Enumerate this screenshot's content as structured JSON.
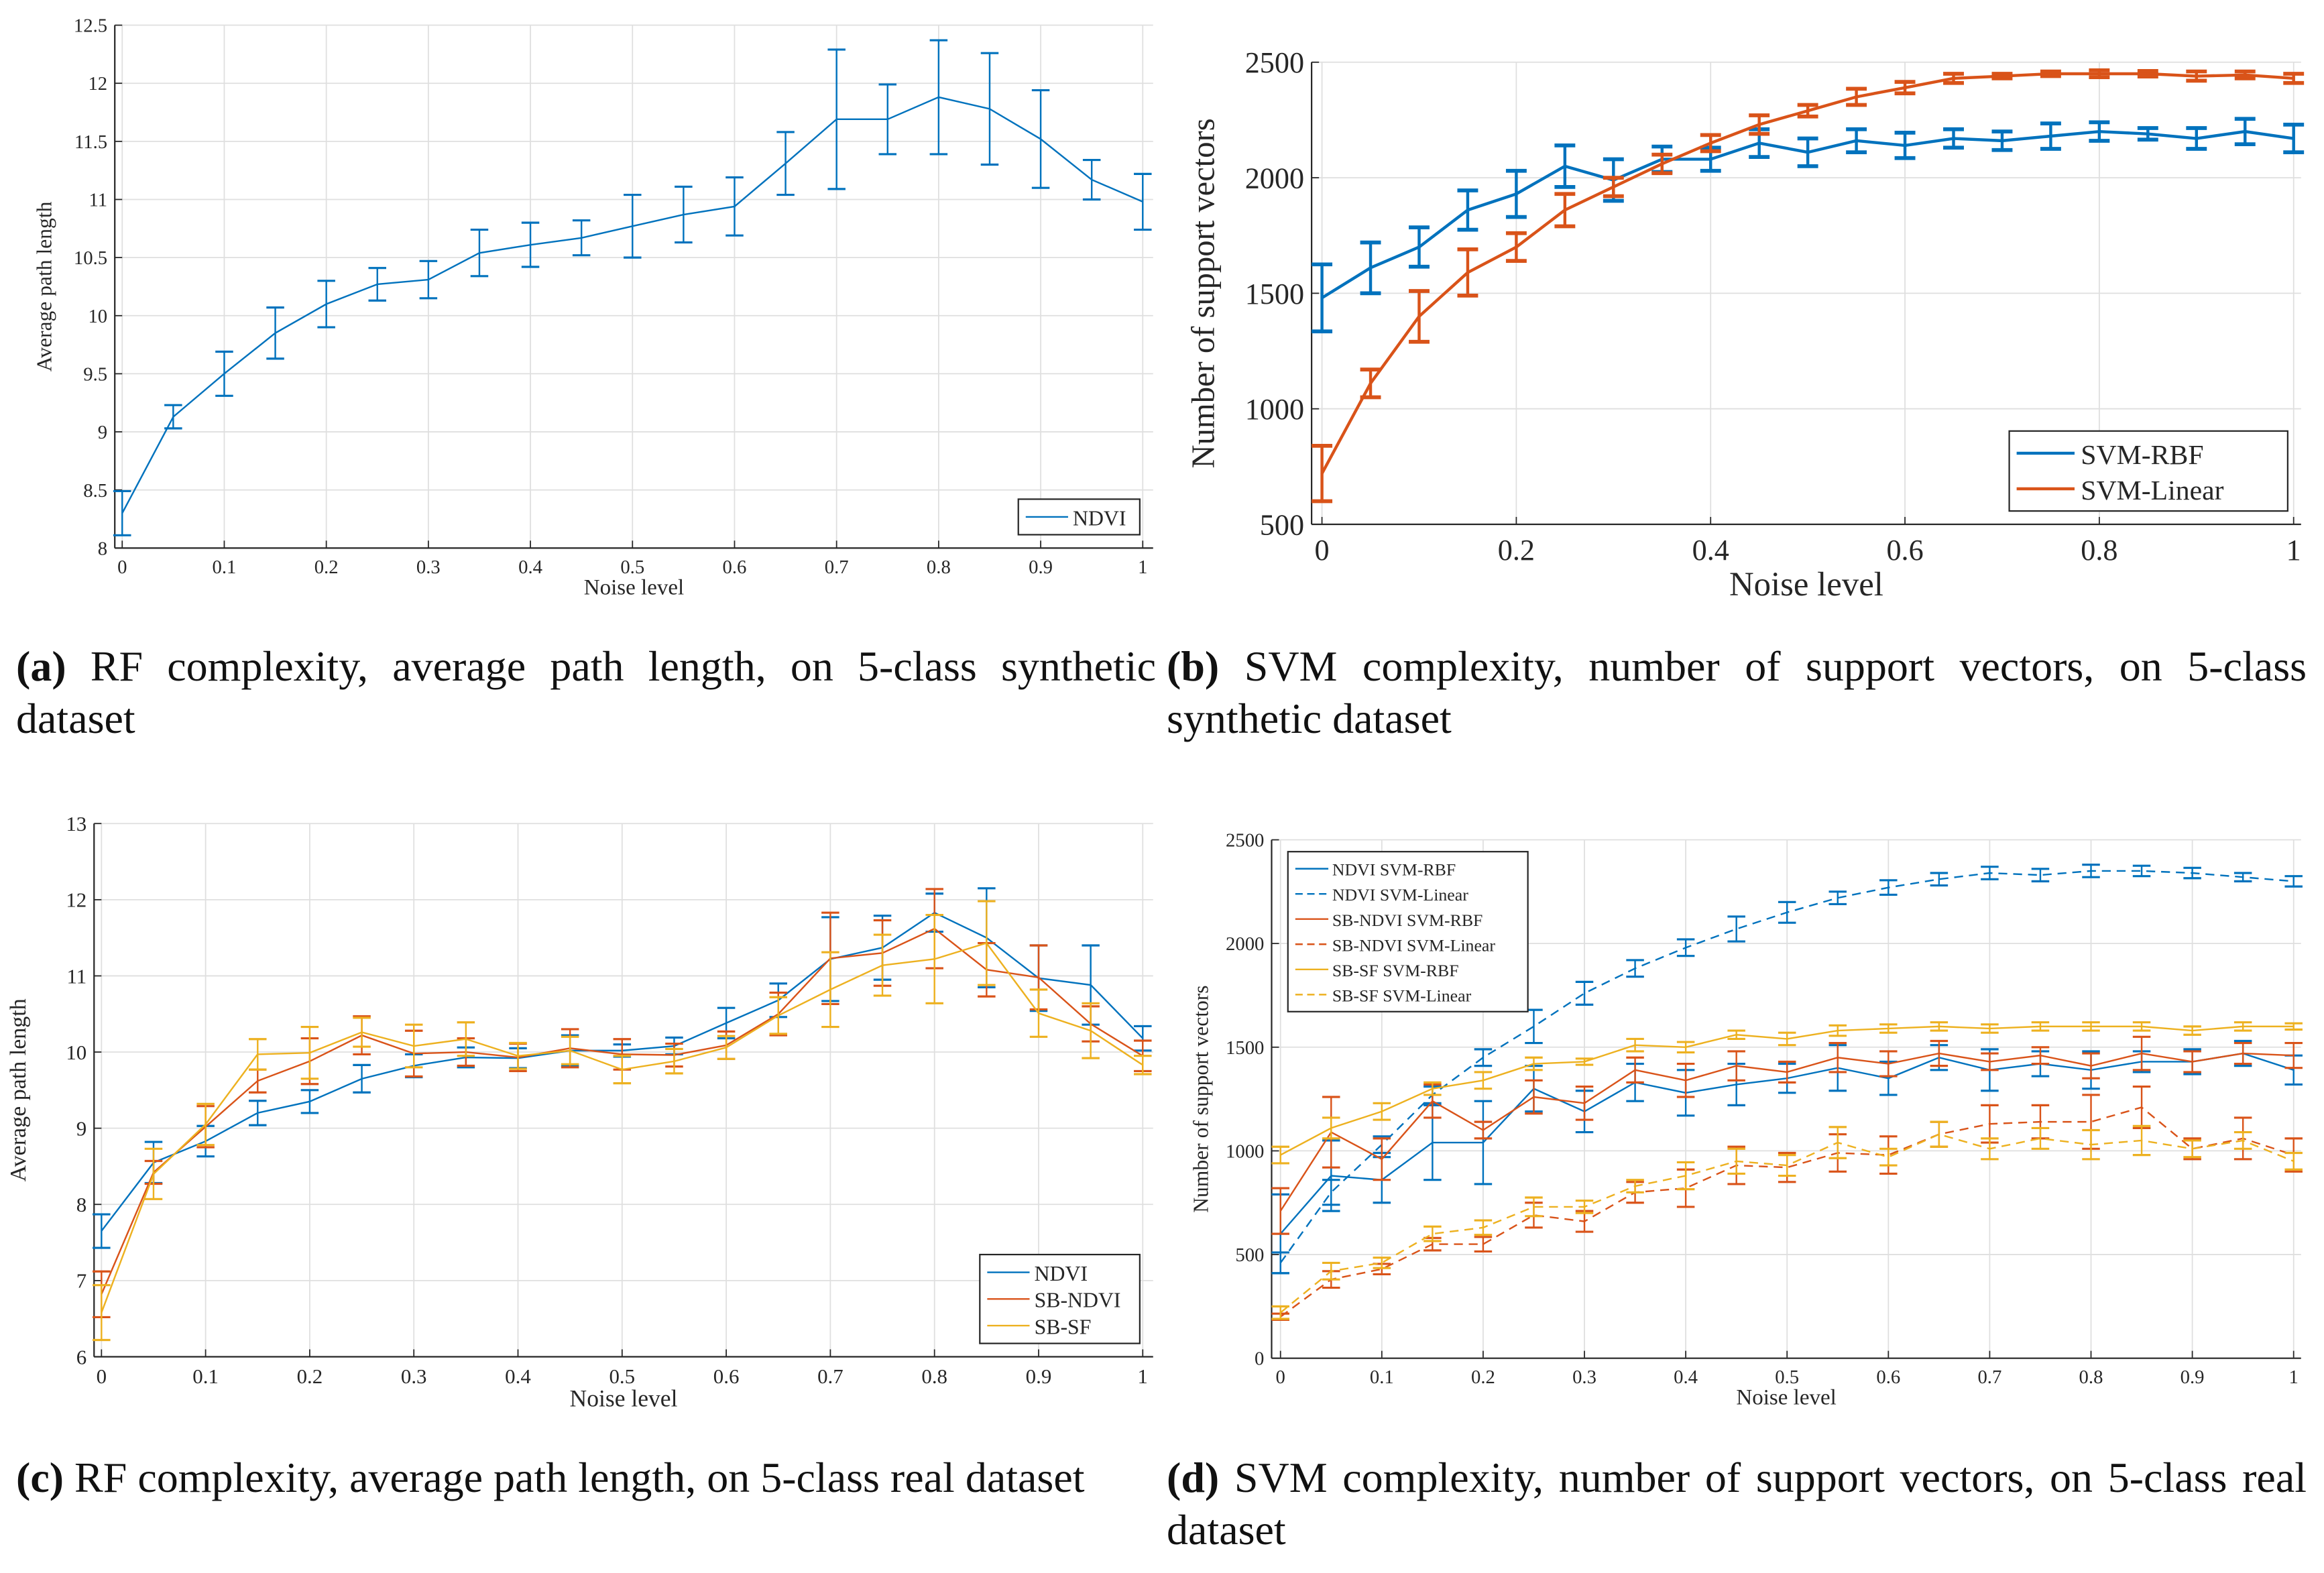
{
  "colors": {
    "blue": "#0072BD",
    "orange": "#D95319",
    "yellow": "#EDB120",
    "grid": "#dfdfdf",
    "axis": "#262626"
  },
  "captions": [
    {
      "label": "(a)",
      "text": "RF complexity, average path length, on 5-class synthetic dataset"
    },
    {
      "label": "(b)",
      "text": "SVM complexity, number of support vectors, on 5-class synthetic dataset"
    },
    {
      "label": "(c)",
      "text": "RF complexity, average path length, on 5-class real dataset"
    },
    {
      "label": "(d)",
      "text": "SVM complexity, number of support vectors, on 5-class real dataset"
    }
  ],
  "chart_data": [
    {
      "id": "a",
      "type": "line",
      "title": "",
      "xlabel": "Noise level",
      "ylabel": "Average path length",
      "xlim": [
        0,
        1
      ],
      "ylim": [
        8,
        12.5
      ],
      "grid": true,
      "legend_position": "bottom-right",
      "xticks": [
        "0",
        "0.1",
        "0.2",
        "0.3",
        "0.4",
        "0.5",
        "0.6",
        "0.7",
        "0.8",
        "0.9",
        "1"
      ],
      "yticks": [
        "8",
        "8.5",
        "9",
        "9.5",
        "10",
        "10.5",
        "11",
        "11.5",
        "12",
        "12.5"
      ],
      "x": [
        0,
        0.05,
        0.1,
        0.15,
        0.2,
        0.25,
        0.3,
        0.35,
        0.4,
        0.45,
        0.5,
        0.55,
        0.6,
        0.65,
        0.7,
        0.75,
        0.8,
        0.85,
        0.9,
        0.95,
        1
      ],
      "series": [
        {
          "name": "NDVI",
          "color": "#0072BD",
          "dashed": false,
          "values": [
            8.3,
            9.13,
            9.5,
            9.85,
            10.1,
            10.27,
            10.31,
            10.54,
            10.61,
            10.67,
            10.77,
            10.87,
            10.94,
            11.31,
            11.69,
            11.69,
            11.88,
            11.78,
            11.52,
            11.17,
            10.98
          ],
          "errors": [
            0.19,
            0.1,
            0.19,
            0.22,
            0.2,
            0.14,
            0.16,
            0.2,
            0.19,
            0.15,
            0.27,
            0.24,
            0.25,
            0.27,
            0.6,
            0.3,
            0.49,
            0.48,
            0.42,
            0.17,
            0.24
          ]
        }
      ]
    },
    {
      "id": "b",
      "type": "line",
      "title": "",
      "xlabel": "Noise level",
      "ylabel": "Number of support vectors",
      "xlim": [
        0,
        1
      ],
      "ylim": [
        500,
        2500
      ],
      "grid": true,
      "legend_position": "bottom-right",
      "xticks": [
        "0",
        "0.2",
        "0.4",
        "0.6",
        "0.8",
        "1"
      ],
      "yticks": [
        "500",
        "1000",
        "1500",
        "2000",
        "2500"
      ],
      "x": [
        0,
        0.05,
        0.1,
        0.15,
        0.2,
        0.25,
        0.3,
        0.35,
        0.4,
        0.45,
        0.5,
        0.55,
        0.6,
        0.65,
        0.7,
        0.75,
        0.8,
        0.85,
        0.9,
        0.95,
        1
      ],
      "series": [
        {
          "name": "SVM-RBF",
          "color": "#0072BD",
          "dashed": false,
          "values": [
            1480,
            1610,
            1700,
            1860,
            1930,
            2050,
            1990,
            2080,
            2080,
            2150,
            2110,
            2160,
            2140,
            2170,
            2160,
            2180,
            2200,
            2190,
            2170,
            2200,
            2170
          ],
          "errors": [
            145,
            110,
            85,
            85,
            100,
            90,
            90,
            55,
            50,
            60,
            60,
            50,
            55,
            40,
            40,
            55,
            40,
            25,
            45,
            55,
            60
          ]
        },
        {
          "name": "SVM-Linear",
          "color": "#D95319",
          "dashed": false,
          "values": [
            720,
            1110,
            1400,
            1590,
            1700,
            1860,
            1960,
            2060,
            2150,
            2230,
            2290,
            2350,
            2390,
            2430,
            2440,
            2450,
            2450,
            2450,
            2440,
            2445,
            2430
          ],
          "errors": [
            120,
            60,
            110,
            100,
            60,
            70,
            40,
            40,
            35,
            40,
            25,
            35,
            25,
            20,
            10,
            10,
            15,
            12,
            20,
            15,
            20
          ]
        }
      ]
    },
    {
      "id": "c",
      "type": "line",
      "title": "",
      "xlabel": "Noise level",
      "ylabel": "Average path length",
      "xlim": [
        0,
        1
      ],
      "ylim": [
        6,
        13
      ],
      "grid": true,
      "legend_position": "bottom-right",
      "xticks": [
        "0",
        "0.1",
        "0.2",
        "0.3",
        "0.4",
        "0.5",
        "0.6",
        "0.7",
        "0.8",
        "0.9",
        "1"
      ],
      "yticks": [
        "6",
        "7",
        "8",
        "9",
        "10",
        "11",
        "12",
        "13"
      ],
      "x": [
        0,
        0.05,
        0.1,
        0.15,
        0.2,
        0.25,
        0.3,
        0.35,
        0.4,
        0.45,
        0.5,
        0.55,
        0.6,
        0.65,
        0.7,
        0.75,
        0.8,
        0.85,
        0.9,
        0.95,
        1
      ],
      "series": [
        {
          "name": "NDVI",
          "color": "#0072BD",
          "dashed": false,
          "values": [
            7.65,
            8.55,
            8.83,
            9.2,
            9.35,
            9.65,
            9.82,
            9.93,
            9.92,
            10.02,
            10.02,
            10.08,
            10.38,
            10.68,
            11.22,
            11.37,
            11.83,
            11.5,
            10.97,
            10.88,
            10.18
          ],
          "errors": [
            0.22,
            0.27,
            0.2,
            0.16,
            0.15,
            0.18,
            0.15,
            0.13,
            0.13,
            0.2,
            0.08,
            0.11,
            0.2,
            0.22,
            0.55,
            0.42,
            0.25,
            0.65,
            0.43,
            0.52,
            0.16
          ]
        },
        {
          "name": "SB-NDVI",
          "color": "#D95319",
          "dashed": false,
          "values": [
            6.82,
            8.42,
            9.02,
            9.62,
            9.88,
            10.22,
            9.98,
            10.0,
            9.93,
            10.05,
            9.97,
            9.96,
            10.09,
            10.5,
            11.23,
            11.3,
            11.62,
            11.08,
            10.98,
            10.37,
            9.95
          ],
          "errors": [
            0.3,
            0.15,
            0.27,
            0.15,
            0.3,
            0.25,
            0.3,
            0.18,
            0.18,
            0.25,
            0.2,
            0.15,
            0.18,
            0.28,
            0.6,
            0.43,
            0.52,
            0.35,
            0.42,
            0.23,
            0.2
          ]
        },
        {
          "name": "SB-SF",
          "color": "#EDB120",
          "dashed": false,
          "values": [
            6.58,
            8.4,
            9.05,
            9.97,
            9.99,
            10.26,
            10.08,
            10.17,
            9.95,
            10.02,
            9.77,
            9.88,
            10.06,
            10.48,
            10.82,
            11.14,
            11.22,
            11.43,
            10.51,
            10.28,
            9.83
          ],
          "errors": [
            0.36,
            0.33,
            0.27,
            0.2,
            0.34,
            0.19,
            0.28,
            0.22,
            0.17,
            0.18,
            0.18,
            0.16,
            0.15,
            0.24,
            0.49,
            0.4,
            0.58,
            0.55,
            0.31,
            0.36,
            0.12
          ]
        }
      ]
    },
    {
      "id": "d",
      "type": "line",
      "title": "",
      "xlabel": "Noise level",
      "ylabel": "Number of support vectors",
      "xlim": [
        0,
        1
      ],
      "ylim": [
        0,
        2500
      ],
      "grid": true,
      "legend_position": "top-left",
      "xticks": [
        "0",
        "0.1",
        "0.2",
        "0.3",
        "0.4",
        "0.5",
        "0.6",
        "0.7",
        "0.8",
        "0.9",
        "1"
      ],
      "yticks": [
        "0",
        "500",
        "1000",
        "1500",
        "2000",
        "2500"
      ],
      "x": [
        0,
        0.05,
        0.1,
        0.15,
        0.2,
        0.25,
        0.3,
        0.35,
        0.4,
        0.45,
        0.5,
        0.55,
        0.6,
        0.65,
        0.7,
        0.75,
        0.8,
        0.85,
        0.9,
        0.95,
        1
      ],
      "series": [
        {
          "name": "NDVI SVM-RBF",
          "color": "#0072BD",
          "dashed": false,
          "values": [
            600,
            880,
            860,
            1040,
            1040,
            1300,
            1190,
            1330,
            1280,
            1320,
            1350,
            1400,
            1350,
            1450,
            1390,
            1420,
            1390,
            1430,
            1430,
            1470,
            1390
          ],
          "errors": [
            190,
            170,
            110,
            180,
            200,
            110,
            100,
            90,
            110,
            100,
            70,
            110,
            80,
            60,
            100,
            60,
            90,
            50,
            60,
            60,
            70
          ]
        },
        {
          "name": "NDVI SVM-Linear",
          "color": "#0072BD",
          "dashed": true,
          "values": [
            460,
            800,
            1030,
            1270,
            1450,
            1600,
            1760,
            1880,
            1980,
            2070,
            2150,
            2220,
            2270,
            2310,
            2340,
            2330,
            2350,
            2350,
            2340,
            2320,
            2300
          ],
          "errors": [
            50,
            60,
            40,
            40,
            40,
            80,
            55,
            40,
            40,
            60,
            50,
            30,
            35,
            30,
            30,
            30,
            30,
            25,
            25,
            20,
            25
          ]
        },
        {
          "name": "SB-NDVI SVM-RBF",
          "color": "#D95319",
          "dashed": false,
          "values": [
            710,
            1090,
            960,
            1240,
            1100,
            1260,
            1230,
            1390,
            1340,
            1410,
            1380,
            1450,
            1420,
            1470,
            1430,
            1460,
            1410,
            1470,
            1430,
            1470,
            1460
          ],
          "errors": [
            110,
            170,
            100,
            80,
            40,
            80,
            80,
            60,
            80,
            70,
            50,
            70,
            60,
            60,
            40,
            40,
            60,
            80,
            50,
            50,
            60
          ]
        },
        {
          "name": "SB-NDVI SVM-Linear",
          "color": "#D95319",
          "dashed": true,
          "values": [
            200,
            380,
            430,
            550,
            550,
            690,
            660,
            800,
            820,
            930,
            920,
            990,
            980,
            1080,
            1130,
            1140,
            1140,
            1210,
            1010,
            1060,
            980
          ],
          "errors": [
            15,
            40,
            25,
            30,
            35,
            60,
            50,
            50,
            90,
            90,
            70,
            90,
            90,
            60,
            90,
            80,
            130,
            100,
            50,
            100,
            80
          ]
        },
        {
          "name": "SB-SF SVM-RBF",
          "color": "#EDB120",
          "dashed": false,
          "values": [
            980,
            1110,
            1190,
            1300,
            1340,
            1420,
            1430,
            1510,
            1500,
            1560,
            1540,
            1580,
            1590,
            1600,
            1590,
            1600,
            1600,
            1600,
            1580,
            1600,
            1600
          ],
          "errors": [
            40,
            50,
            40,
            30,
            40,
            30,
            15,
            30,
            25,
            20,
            30,
            25,
            20,
            20,
            20,
            20,
            20,
            20,
            20,
            20,
            15
          ]
        },
        {
          "name": "SB-SF SVM-Linear",
          "color": "#EDB120",
          "dashed": true,
          "values": [
            220,
            420,
            460,
            600,
            630,
            730,
            730,
            830,
            880,
            950,
            930,
            1040,
            970,
            1080,
            1010,
            1060,
            1030,
            1050,
            1010,
            1050,
            950
          ],
          "errors": [
            30,
            40,
            25,
            35,
            35,
            45,
            30,
            30,
            65,
            60,
            50,
            75,
            40,
            60,
            50,
            50,
            70,
            70,
            40,
            40,
            40
          ]
        }
      ]
    }
  ]
}
